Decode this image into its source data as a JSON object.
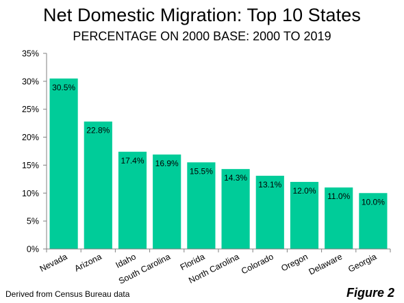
{
  "page": {
    "title": "Net Domestic Migration: Top 10 States",
    "subtitle": "PERCENTAGE ON 2000 BASE: 2000 TO 2019",
    "footnote": "Derived from Census Bureau data",
    "figure_label": "Figure 2"
  },
  "chart_data": {
    "type": "bar",
    "title": "Net Domestic Migration: Top 10 States",
    "subtitle": "PERCENTAGE ON 2000 BASE: 2000 TO 2019",
    "categories": [
      "Nevada",
      "Arizona",
      "Idaho",
      "South Carolina",
      "Florida",
      "North Carolina",
      "Colorado",
      "Oregon",
      "Delaware",
      "Georgia"
    ],
    "values": [
      30.5,
      22.8,
      17.4,
      16.9,
      15.5,
      14.3,
      13.1,
      12.0,
      11.0,
      10.0
    ],
    "data_labels": [
      "30.5%",
      "22.8%",
      "17.4%",
      "16.9%",
      "15.5%",
      "14.3%",
      "13.1%",
      "12.0%",
      "11.0%",
      "10.0%"
    ],
    "xlabel": "",
    "ylabel": "",
    "ylim": [
      0,
      35
    ],
    "yticks": [
      0,
      5,
      10,
      15,
      20,
      25,
      30,
      35
    ],
    "ytick_labels": [
      "0%",
      "5%",
      "10%",
      "15%",
      "20%",
      "25%",
      "30%",
      "35%"
    ],
    "grid": false,
    "legend": "none",
    "bar_color": "#00cc99",
    "axis_color": "#7f7f7f"
  }
}
